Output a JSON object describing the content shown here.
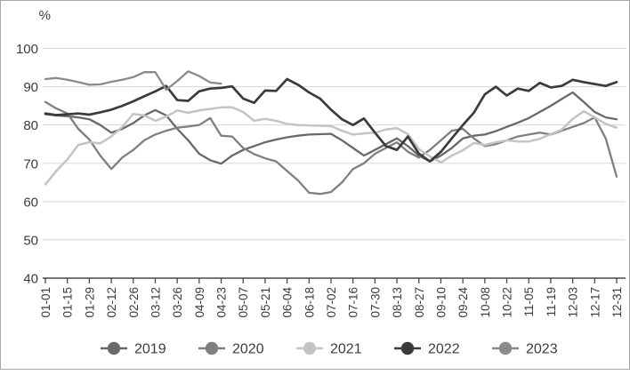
{
  "chart_data": {
    "type": "line",
    "title": "",
    "unit_label": "%",
    "xlabel": "",
    "ylabel": "%",
    "ylim": [
      40,
      100
    ],
    "ytick_step": 10,
    "ytick_labels": [
      "100",
      "90",
      "80",
      "70",
      "60",
      "50",
      "40"
    ],
    "grid": "horizontal",
    "legend_position": "bottom",
    "x_tick_labels": [
      "01-01",
      "01-15",
      "01-29",
      "02-12",
      "02-26",
      "03-12",
      "03-26",
      "04-09",
      "04-23",
      "05-07",
      "05-21",
      "06-04",
      "06-18",
      "07-02",
      "07-16",
      "07-30",
      "08-13",
      "08-27",
      "09-10",
      "09-24",
      "10-08",
      "10-22",
      "11-05",
      "11-19",
      "12-03",
      "12-17",
      "12-31"
    ],
    "points_per_full_year": 53,
    "axis_color": "#4a4a4a",
    "gridline_color": "#d8d8d8",
    "series": [
      {
        "name": "2019",
        "color": "#696969",
        "width": 2.3,
        "values": [
          82.8,
          82.5,
          82.3,
          82.0,
          81.5,
          80.0,
          78.0,
          79.0,
          80.5,
          82.5,
          83.9,
          82.5,
          79.0,
          76.0,
          72.5,
          70.8,
          69.9,
          72.0,
          73.5,
          74.5,
          75.5,
          76.2,
          76.8,
          77.2,
          77.5,
          77.6,
          77.7,
          76.0,
          74.0,
          72.0,
          73.5,
          75.0,
          76.5,
          74.5,
          72.0,
          70.5,
          72.0,
          74.0,
          76.5,
          77.2,
          77.5,
          78.4,
          79.5,
          80.6,
          81.8,
          83.4,
          85.0,
          86.8,
          88.5,
          86.0,
          83.4,
          82.0,
          81.5
        ]
      },
      {
        "name": "2020",
        "color": "#7f7f7f",
        "width": 2.3,
        "values": [
          86.0,
          84.3,
          83.0,
          79.0,
          76.2,
          72.0,
          68.5,
          71.5,
          73.5,
          76.0,
          77.5,
          78.5,
          79.3,
          79.6,
          80.0,
          81.8,
          77.2,
          77.0,
          74.0,
          72.4,
          71.3,
          70.5,
          68.0,
          65.5,
          62.3,
          62.0,
          62.5,
          65.0,
          68.5,
          70.0,
          72.5,
          74.0,
          75.5,
          73.0,
          71.5,
          73.5,
          76.0,
          78.5,
          79.0,
          76.5,
          74.5,
          75.0,
          76.0,
          77.0,
          77.5,
          78.0,
          77.5,
          78.5,
          79.5,
          80.5,
          82.0,
          76.5,
          66.5
        ]
      },
      {
        "name": "2021",
        "color": "#c4c4c4",
        "width": 2.5,
        "values": [
          64.5,
          68.0,
          71.0,
          74.8,
          75.5,
          75.2,
          77.0,
          79.5,
          82.9,
          82.5,
          81.1,
          82.2,
          83.8,
          83.2,
          83.8,
          84.2,
          84.6,
          84.6,
          83.4,
          81.1,
          81.6,
          81.1,
          80.3,
          80.0,
          79.9,
          79.8,
          79.7,
          78.5,
          77.5,
          77.8,
          78.0,
          78.8,
          79.2,
          77.6,
          73.7,
          71.8,
          70.2,
          72.0,
          73.4,
          75.3,
          74.8,
          75.5,
          76.0,
          75.7,
          75.7,
          76.4,
          77.6,
          78.8,
          81.6,
          83.6,
          82.0,
          80.3,
          79.3
        ]
      },
      {
        "name": "2022",
        "color": "#3b3b3b",
        "width": 2.7,
        "values": [
          83.0,
          82.6,
          82.8,
          83.0,
          82.7,
          83.3,
          84.0,
          85.0,
          86.2,
          87.5,
          88.8,
          90.2,
          86.5,
          86.3,
          88.8,
          89.5,
          89.7,
          90.1,
          86.9,
          85.8,
          89.0,
          88.9,
          92.0,
          90.5,
          88.5,
          86.9,
          84.0,
          81.5,
          80.0,
          81.7,
          78.0,
          74.5,
          73.5,
          77.0,
          72.5,
          70.5,
          73.0,
          76.5,
          80.0,
          83.2,
          88.0,
          90.0,
          87.7,
          89.5,
          88.9,
          91.0,
          89.8,
          90.2,
          91.8,
          91.2,
          90.7,
          90.2,
          91.2
        ]
      },
      {
        "name": "2023",
        "color": "#8a8a8a",
        "width": 2.3,
        "values": [
          92.0,
          92.3,
          91.8,
          91.2,
          90.5,
          90.6,
          91.3,
          91.8,
          92.5,
          93.8,
          93.8,
          89.2,
          91.5,
          94.0,
          92.8,
          91.1,
          90.8
        ]
      }
    ],
    "legend": [
      {
        "label": "2019",
        "marker": "circle-on-line",
        "color": "#696969"
      },
      {
        "label": "2020",
        "marker": "circle-on-line",
        "color": "#7f7f7f"
      },
      {
        "label": "2021",
        "marker": "circle-on-line",
        "color": "#c4c4c4"
      },
      {
        "label": "2022",
        "marker": "circle-on-line",
        "color": "#3b3b3b"
      },
      {
        "label": "2023",
        "marker": "circle-on-line",
        "color": "#8a8a8a"
      }
    ]
  }
}
